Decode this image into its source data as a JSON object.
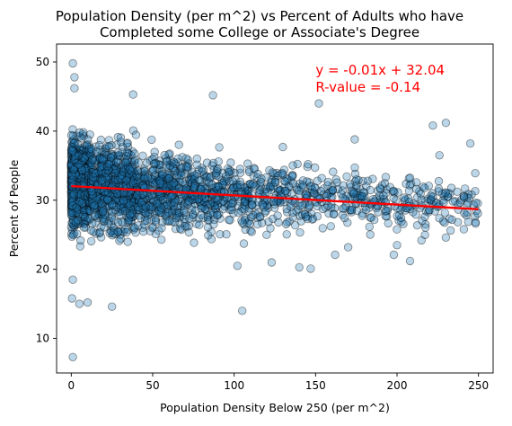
{
  "chart_data": {
    "type": "scatter",
    "title_line1": "Population Density (per m^2) vs Percent of Adults who have",
    "title_line2": "Completed some College or Associate's Degree",
    "xlabel": "Population Density Below 250 (per m^2)",
    "ylabel": "Percent of People",
    "xlim": [
      -9,
      259
    ],
    "ylim": [
      5,
      52.6
    ],
    "xticks": [
      0,
      50,
      100,
      150,
      200,
      250
    ],
    "yticks": [
      10,
      20,
      30,
      40,
      50
    ],
    "grid": false,
    "annotation": {
      "equation": "y = -0.01x + 32.04",
      "rvalue": "R-value = -0.14",
      "x": 150,
      "color": "#ff0000"
    },
    "regression": {
      "slope": -0.0134,
      "intercept": 32.04,
      "x_range": [
        0,
        250
      ],
      "color": "#ff0000"
    },
    "marker_fill": "#1f77b4",
    "marker_edge": "#000000",
    "marker_alpha": 0.3,
    "outliers": [
      [
        1,
        7.3
      ],
      [
        1,
        49.8
      ],
      [
        2,
        47.8
      ],
      [
        2,
        46.2
      ],
      [
        0.5,
        15.8
      ],
      [
        1,
        18.5
      ],
      [
        5,
        15.0
      ],
      [
        10,
        15.2
      ],
      [
        25,
        14.6
      ],
      [
        105,
        14.0
      ],
      [
        38,
        45.3
      ],
      [
        87,
        45.2
      ],
      [
        152,
        44.0
      ],
      [
        222,
        40.8
      ],
      [
        174,
        38.8
      ],
      [
        230,
        41.2
      ],
      [
        245,
        38.2
      ],
      [
        102,
        20.5
      ],
      [
        123,
        21.0
      ],
      [
        140,
        20.3
      ],
      [
        147,
        20.1
      ],
      [
        162,
        22.1
      ],
      [
        198,
        22.1
      ],
      [
        208,
        21.2
      ],
      [
        200,
        23.5
      ],
      [
        170,
        23.2
      ],
      [
        230,
        24.6
      ],
      [
        241,
        25.8
      ],
      [
        215,
        24.2
      ],
      [
        226,
        36.5
      ]
    ],
    "scatter_clusters": [
      {
        "x_range": [
          0,
          12
        ],
        "y_range": [
          20,
          46
        ],
        "center": 32.8,
        "count": 750
      },
      {
        "x_range": [
          12,
          40
        ],
        "y_range": [
          17,
          44
        ],
        "center": 32.0,
        "count": 650
      },
      {
        "x_range": [
          40,
          75
        ],
        "y_range": [
          19,
          42
        ],
        "center": 31.3,
        "count": 420
      },
      {
        "x_range": [
          75,
          110
        ],
        "y_range": [
          20,
          41
        ],
        "center": 30.8,
        "count": 260
      },
      {
        "x_range": [
          110,
          150
        ],
        "y_range": [
          20,
          40
        ],
        "center": 30.5,
        "count": 190
      },
      {
        "x_range": [
          150,
          200
        ],
        "y_range": [
          22,
          39
        ],
        "center": 30.2,
        "count": 150
      },
      {
        "x_range": [
          200,
          250
        ],
        "y_range": [
          23,
          38
        ],
        "center": 29.6,
        "count": 120
      }
    ]
  }
}
